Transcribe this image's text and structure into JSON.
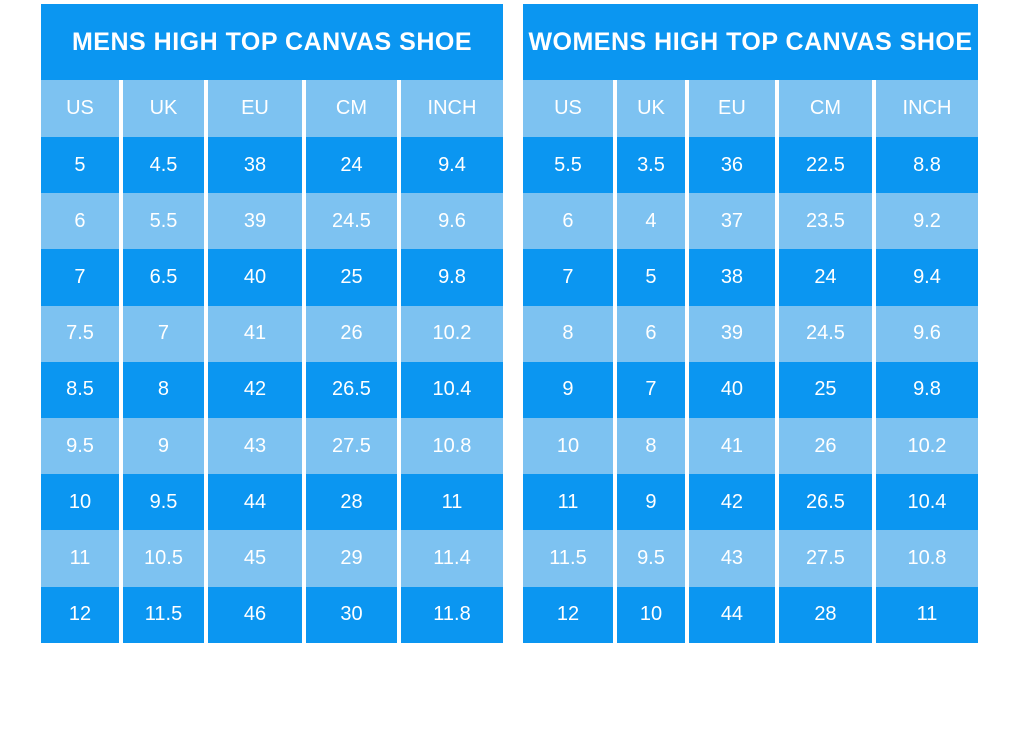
{
  "colors": {
    "dark_blue": "#0b96f1",
    "light_blue": "#7dc2f1",
    "text": "#ffffff",
    "gridline": "#ffffff",
    "page_background": "#ffffff"
  },
  "chart_data": [
    {
      "type": "table",
      "title": "MENS HIGH TOP CANVAS SHOE",
      "columns": [
        "US",
        "UK",
        "EU",
        "CM",
        "INCH"
      ],
      "rows": [
        [
          "5",
          "4.5",
          "38",
          "24",
          "9.4"
        ],
        [
          "6",
          "5.5",
          "39",
          "24.5",
          "9.6"
        ],
        [
          "7",
          "6.5",
          "40",
          "25",
          "9.8"
        ],
        [
          "7.5",
          "7",
          "41",
          "26",
          "10.2"
        ],
        [
          "8.5",
          "8",
          "42",
          "26.5",
          "10.4"
        ],
        [
          "9.5",
          "9",
          "43",
          "27.5",
          "10.8"
        ],
        [
          "10",
          "9.5",
          "44",
          "28",
          "11"
        ],
        [
          "11",
          "10.5",
          "45",
          "29",
          "11.4"
        ],
        [
          "12",
          "11.5",
          "46",
          "30",
          "11.8"
        ]
      ]
    },
    {
      "type": "table",
      "title": "WOMENS HIGH TOP CANVAS SHOE",
      "columns": [
        "US",
        "UK",
        "EU",
        "CM",
        "INCH"
      ],
      "rows": [
        [
          "5.5",
          "3.5",
          "36",
          "22.5",
          "8.8"
        ],
        [
          "6",
          "4",
          "37",
          "23.5",
          "9.2"
        ],
        [
          "7",
          "5",
          "38",
          "24",
          "9.4"
        ],
        [
          "8",
          "6",
          "39",
          "24.5",
          "9.6"
        ],
        [
          "9",
          "7",
          "40",
          "25",
          "9.8"
        ],
        [
          "10",
          "8",
          "41",
          "26",
          "10.2"
        ],
        [
          "11",
          "9",
          "42",
          "26.5",
          "10.4"
        ],
        [
          "11.5",
          "9.5",
          "43",
          "27.5",
          "10.8"
        ],
        [
          "12",
          "10",
          "44",
          "28",
          "11"
        ]
      ]
    }
  ]
}
